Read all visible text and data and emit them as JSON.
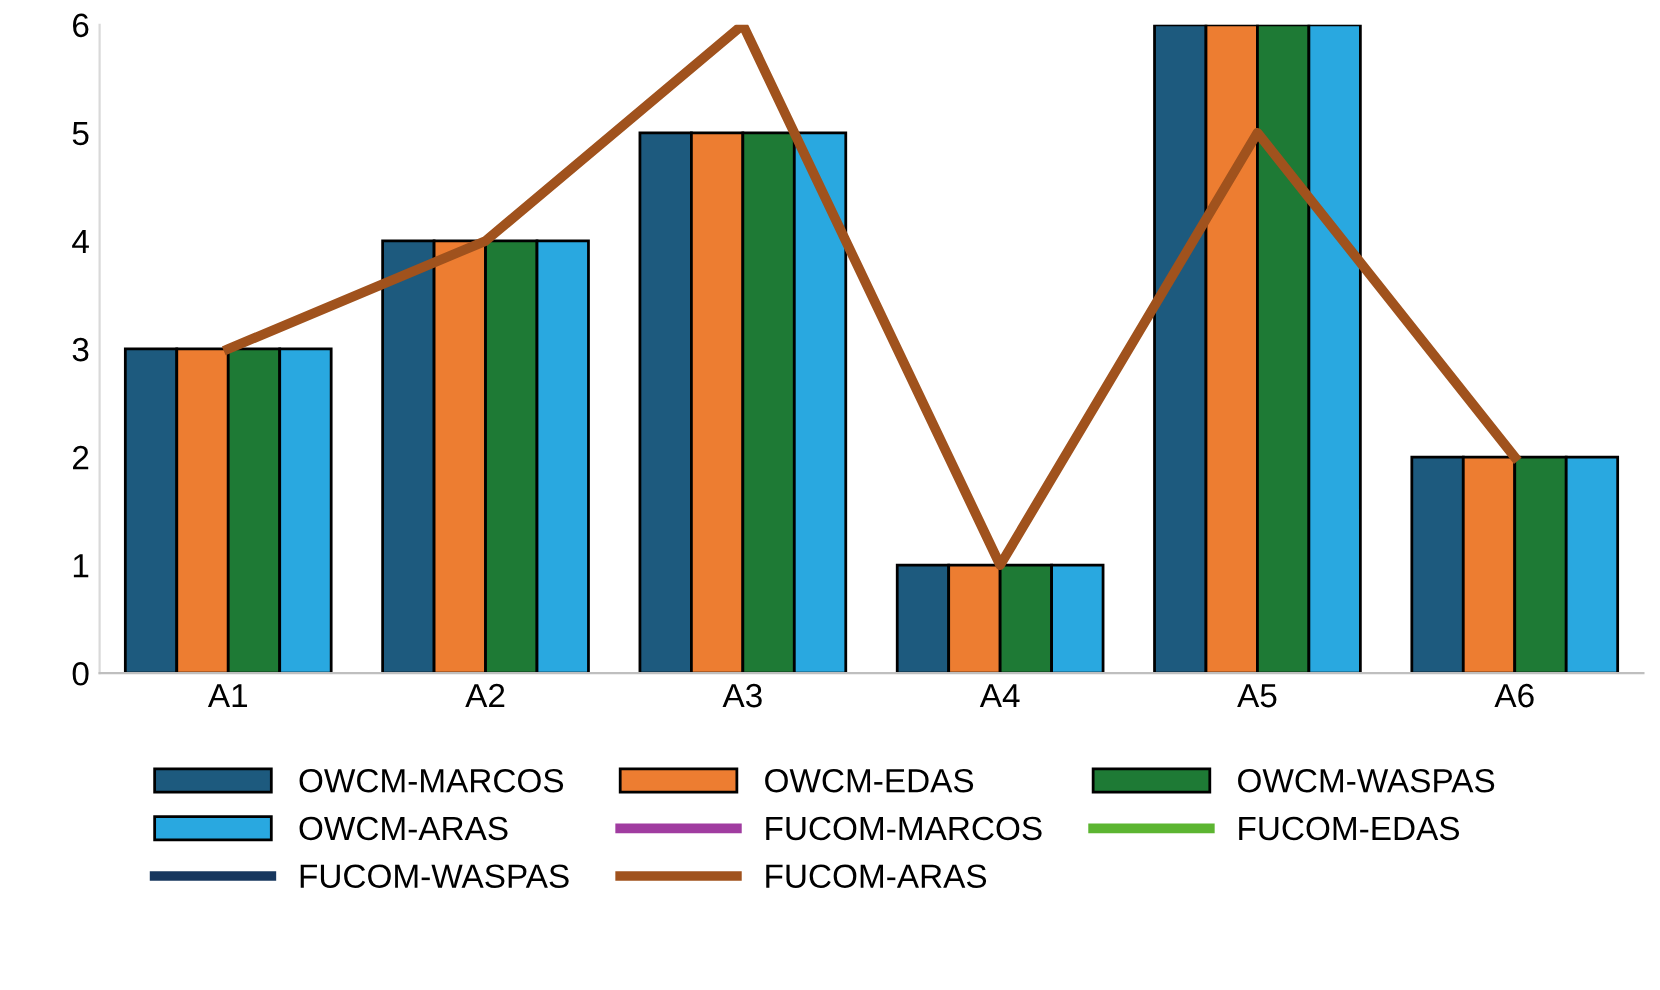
{
  "chart_data": {
    "type": "bar",
    "categories": [
      "A1",
      "A2",
      "A3",
      "A4",
      "A5",
      "A6"
    ],
    "series": [
      {
        "name": "OWCM-MARCOS",
        "color": "#1d5a7e",
        "values": [
          3,
          4,
          5,
          1,
          6,
          2
        ]
      },
      {
        "name": "OWCM-EDAS",
        "color": "#ed7d31",
        "values": [
          3,
          4,
          5,
          1,
          6,
          2
        ]
      },
      {
        "name": "OWCM-WASPAS",
        "color": "#1e7a35",
        "values": [
          3,
          4,
          5,
          1,
          6,
          2
        ]
      },
      {
        "name": "OWCM-ARAS",
        "color": "#29a8e0",
        "values": [
          3,
          4,
          5,
          1,
          6,
          2
        ]
      },
      {
        "name": "FUCOM-MARCOS",
        "type": "line",
        "color": "#a03ca0",
        "values": [
          null,
          null,
          null,
          null,
          null,
          null
        ]
      },
      {
        "name": "FUCOM-EDAS",
        "type": "line",
        "color": "#5cb531",
        "values": [
          null,
          null,
          null,
          null,
          null,
          null
        ]
      },
      {
        "name": "FUCOM-WASPAS",
        "type": "line",
        "color": "#17375e",
        "values": [
          null,
          null,
          null,
          null,
          null,
          null
        ]
      },
      {
        "name": "FUCOM-ARAS",
        "type": "line",
        "color": "#a0521d",
        "values": [
          3,
          4,
          6,
          1,
          5,
          2
        ]
      }
    ],
    "ylim": [
      0,
      6
    ],
    "yticks": [
      0,
      1,
      2,
      3,
      4,
      5,
      6
    ],
    "grid": false,
    "legend": "bottom"
  }
}
